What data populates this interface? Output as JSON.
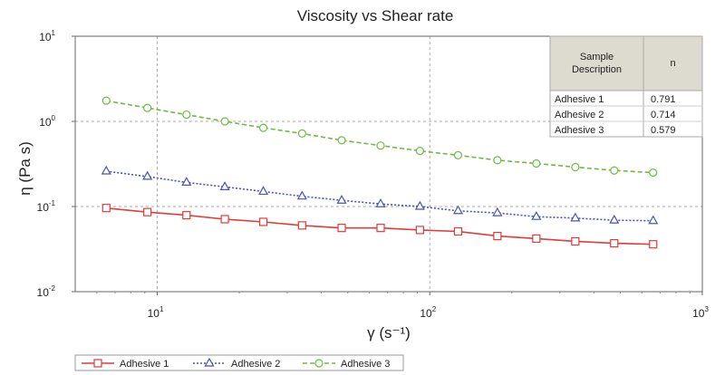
{
  "chart_data": {
    "type": "line",
    "title": "Viscosity vs Shear rate",
    "xlabel": "γ (s⁻¹)",
    "ylabel": "η (Pa s)",
    "xscale": "log",
    "yscale": "log",
    "xlim": [
      5,
      1000
    ],
    "ylim": [
      0.01,
      10
    ],
    "grid": true,
    "x_ticks": [
      {
        "base": "10",
        "exp": "1"
      },
      {
        "base": "10",
        "exp": "2"
      },
      {
        "base": "10",
        "exp": "3"
      }
    ],
    "y_ticks": [
      {
        "base": "10",
        "exp": "1"
      },
      {
        "base": "10",
        "exp": "0"
      },
      {
        "base": "10",
        "exp": "-1"
      },
      {
        "base": "10",
        "exp": "-2"
      }
    ],
    "x": [
      6.5,
      9.2,
      12.8,
      17.7,
      24.5,
      34,
      47.5,
      66,
      92,
      127,
      177,
      246,
      342,
      475,
      660
    ],
    "series": [
      {
        "name": "Adhesive 1",
        "color": "#e03c3c",
        "marker": "square",
        "dash": "",
        "values": [
          0.096,
          0.086,
          0.079,
          0.071,
          0.066,
          0.06,
          0.056,
          0.056,
          0.053,
          0.051,
          0.045,
          0.042,
          0.039,
          0.037,
          0.036
        ]
      },
      {
        "name": "Adhesive 2",
        "color": "#4a52b8",
        "marker": "triangle",
        "dash": "2,2",
        "values": [
          0.26,
          0.225,
          0.192,
          0.17,
          0.15,
          0.132,
          0.118,
          0.107,
          0.1,
          0.089,
          0.084,
          0.076,
          0.073,
          0.069,
          0.068
        ]
      },
      {
        "name": "Adhesive 3",
        "color": "#6dbb45",
        "marker": "circle",
        "dash": "5,3",
        "values": [
          1.75,
          1.44,
          1.2,
          1.0,
          0.84,
          0.72,
          0.6,
          0.52,
          0.45,
          0.4,
          0.35,
          0.32,
          0.29,
          0.265,
          0.25
        ]
      }
    ],
    "table": {
      "headers": [
        "Sample Description",
        "n"
      ],
      "rows": [
        [
          "Adhesive 1",
          "0.791"
        ],
        [
          "Adhesive 2",
          "0.714"
        ],
        [
          "Adhesive 3",
          "0.579"
        ]
      ]
    }
  }
}
